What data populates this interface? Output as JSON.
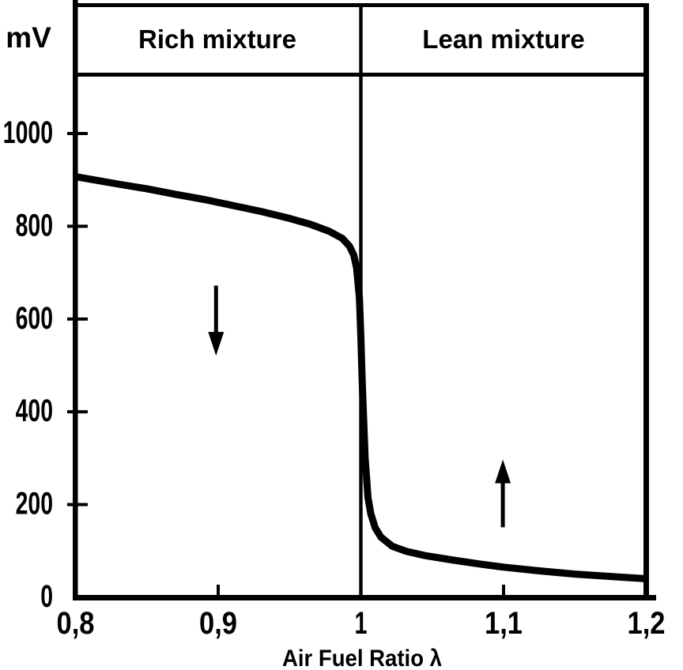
{
  "figure": {
    "background": "#ffffff",
    "ink": "#000000"
  },
  "chart_data": {
    "type": "line",
    "xlabel": "Air Fuel Ratio  λ",
    "ylabel": "mV",
    "xlim": [
      0.8,
      1.2
    ],
    "ylim": [
      0,
      1000
    ],
    "grid": false,
    "legend": "none",
    "x_ticks": [
      {
        "value": 0.8,
        "label": "0,8",
        "mark": false
      },
      {
        "value": 0.9,
        "label": "0,9",
        "mark": true
      },
      {
        "value": 1.0,
        "label": "1",
        "mark": false
      },
      {
        "value": 1.1,
        "label": "1,1",
        "mark": true
      },
      {
        "value": 1.2,
        "label": "1,2",
        "mark": false
      }
    ],
    "y_ticks": [
      {
        "value": 0,
        "label": "0",
        "mark": false
      },
      {
        "value": 200,
        "label": "200",
        "mark": true
      },
      {
        "value": 400,
        "label": "400",
        "mark": true
      },
      {
        "value": 600,
        "label": "600",
        "mark": true
      },
      {
        "value": 800,
        "label": "800",
        "mark": true
      },
      {
        "value": 1000,
        "label": "1000",
        "mark": true
      }
    ],
    "regions": [
      {
        "label": "Rich mixture",
        "from": 0.8,
        "to": 1.0
      },
      {
        "label": "Lean mixture",
        "from": 1.0,
        "to": 1.2
      }
    ],
    "divider_x": 1.0,
    "series": [
      {
        "name": "sensor-voltage-curve",
        "points": [
          [
            0.8,
            907
          ],
          [
            0.815,
            899
          ],
          [
            0.83,
            891
          ],
          [
            0.85,
            881
          ],
          [
            0.87,
            869
          ],
          [
            0.89,
            858
          ],
          [
            0.91,
            845
          ],
          [
            0.93,
            832
          ],
          [
            0.95,
            817
          ],
          [
            0.965,
            804
          ],
          [
            0.978,
            789
          ],
          [
            0.987,
            774
          ],
          [
            0.992,
            757
          ],
          [
            0.995,
            738
          ],
          [
            0.997,
            710
          ],
          [
            0.999,
            645
          ],
          [
            1.0,
            560
          ],
          [
            1.001,
            460
          ],
          [
            1.003,
            300
          ],
          [
            1.005,
            215
          ],
          [
            1.007,
            180
          ],
          [
            1.01,
            150
          ],
          [
            1.014,
            130
          ],
          [
            1.022,
            110
          ],
          [
            1.032,
            99
          ],
          [
            1.045,
            90
          ],
          [
            1.065,
            80
          ],
          [
            1.085,
            71
          ],
          [
            1.1,
            65
          ],
          [
            1.125,
            57
          ],
          [
            1.15,
            50
          ],
          [
            1.175,
            45
          ],
          [
            1.2,
            40
          ]
        ]
      }
    ],
    "arrows": [
      {
        "direction": "down",
        "x": 0.8985,
        "y_from": 672,
        "y_to": 521
      },
      {
        "direction": "up",
        "x": 1.0995,
        "y_from": 151,
        "y_to": 297
      }
    ]
  }
}
